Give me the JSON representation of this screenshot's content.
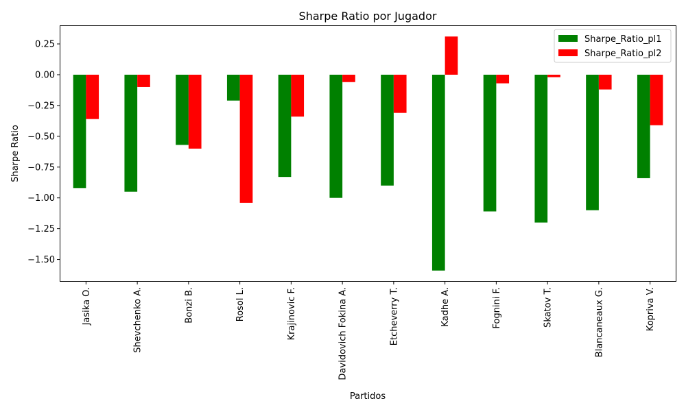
{
  "chart_data": {
    "type": "bar",
    "title": "Sharpe Ratio por Jugador",
    "xlabel": "Partidos",
    "ylabel": "Sharpe Ratio",
    "categories": [
      "Jasika O.",
      "Shevchenko A.",
      "Bonzi B.",
      "Rosol L.",
      "Krajinovic F.",
      "Davidovich Fokina A.",
      "Etcheverry T.",
      "Kadhe A.",
      "Fognini F.",
      "Skatov T.",
      "Blancaneaux G.",
      "Kopriva V."
    ],
    "series": [
      {
        "name": "Sharpe_Ratio_pl1",
        "color": "#008000",
        "values": [
          -0.92,
          -0.95,
          -0.57,
          -0.21,
          -0.83,
          -1.0,
          -0.9,
          -1.59,
          -1.11,
          -1.2,
          -1.1,
          -0.84
        ]
      },
      {
        "name": "Sharpe_Ratio_pl2",
        "color": "#ff0000",
        "values": [
          -0.36,
          -0.1,
          -0.6,
          -1.04,
          -0.34,
          -0.06,
          -0.31,
          0.31,
          -0.07,
          -0.02,
          -0.12,
          -0.41
        ]
      }
    ],
    "yticks": [
      0.25,
      0.0,
      -0.25,
      -0.5,
      -0.75,
      -1.0,
      -1.25,
      -1.5
    ],
    "ytick_labels": [
      "0.25",
      "0.00",
      "−0.25",
      "−0.50",
      "−0.75",
      "−1.00",
      "−1.25",
      "−1.50"
    ],
    "ylim": [
      -1.675,
      0.395
    ],
    "grid": false,
    "legend_position": "top-right"
  }
}
